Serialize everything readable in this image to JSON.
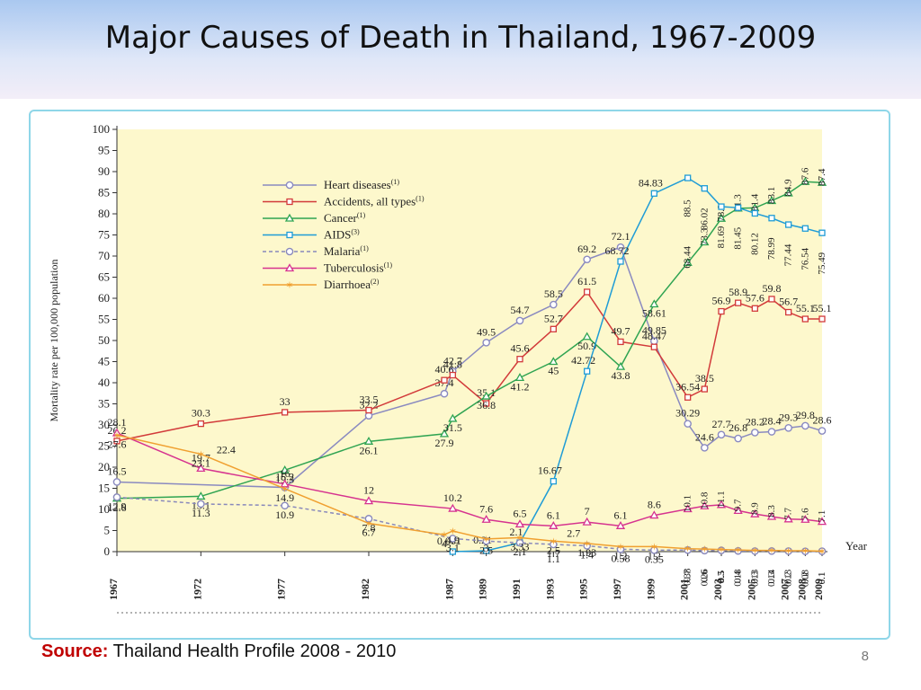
{
  "slide": {
    "title": "Major Causes of Death in Thailand, 1967-2009",
    "source_label": "Source:",
    "source_text": "Thailand Health Profile 2008 - 2010",
    "page_number": "8"
  },
  "chart_data": {
    "type": "line",
    "title": "",
    "ylabel": "Mortality rate per 100,000 population",
    "xlabel": "Year",
    "ylim": [
      0,
      100
    ],
    "yticks": [
      0,
      5,
      10,
      15,
      20,
      25,
      30,
      35,
      40,
      45,
      50,
      55,
      60,
      65,
      70,
      75,
      80,
      85,
      90,
      95,
      100
    ],
    "xticks": [
      1967,
      1972,
      1977,
      1982,
      1987,
      1989,
      1991,
      1993,
      1995,
      1997,
      1999,
      2001,
      2003,
      2005,
      2007,
      2008,
      2009
    ],
    "legend_position": "top-left",
    "colors": {
      "plot_background": "#fdf8cc",
      "heart": "#8a8ac0",
      "accidents": "#d23a3a",
      "cancer": "#2fa452",
      "aids": "#1f9cd6",
      "malaria": "#8888bb",
      "tb": "#d6338f",
      "diarrhoea": "#f0a030"
    },
    "series": [
      {
        "key": "heart",
        "name": "Heart diseases",
        "sup": "(1)",
        "marker": "circle",
        "dash": false,
        "x": [
          1967,
          1977,
          1982,
          1986.5,
          1987,
          1989,
          1991,
          1993,
          1995,
          1997,
          1999,
          2001,
          2002,
          2003,
          2004,
          2005,
          2006,
          2007,
          2008,
          2009
        ],
        "values": [
          16.5,
          15.2,
          32.2,
          37.4,
          42.7,
          49.5,
          54.7,
          58.5,
          69.2,
          72.1,
          49.85,
          30.29,
          24.6,
          27.7,
          26.8,
          28.2,
          28.4,
          29.3,
          29.8,
          28.6
        ],
        "labels": [
          "16.5",
          "15.2",
          "32.2",
          "37.4",
          "42.7",
          "49.5",
          "54.7",
          "58.5",
          "69.2",
          "72.1",
          "49.85",
          "30.29",
          "24.6",
          "27.7",
          "26.8",
          "28.2",
          "28.4",
          "29.3",
          "29.8",
          "28.6"
        ]
      },
      {
        "key": "accidents",
        "name": "Accidents, all types",
        "sup": "(1)",
        "marker": "square",
        "dash": false,
        "x": [
          1967,
          1972,
          1977,
          1982,
          1986.5,
          1987,
          1989,
          1991,
          1993,
          1995,
          1997,
          1999,
          2001,
          2002,
          2003,
          2004,
          2005,
          2006,
          2007,
          2008,
          2009
        ],
        "values": [
          26.2,
          30.3,
          33,
          33.5,
          40.6,
          41.8,
          35.1,
          45.6,
          52.7,
          61.5,
          49.7,
          48.47,
          36.54,
          38.5,
          56.9,
          58.9,
          57.6,
          59.8,
          56.7,
          55.1,
          55.1
        ],
        "labels": [
          "26.2",
          "30.3",
          "33",
          "33.5",
          "40.6",
          "41.8",
          "35.1",
          "45.6",
          "52.7",
          "61.5",
          "49.7",
          "48.47",
          "36.54",
          "38.5",
          "56.9",
          "58.9",
          "57.6",
          "59.8",
          "56.7",
          "55.1",
          "55.1"
        ]
      },
      {
        "key": "cancer",
        "name": "Cancer",
        "sup": "(1)",
        "marker": "triangle",
        "dash": false,
        "x": [
          1967,
          1972,
          1977,
          1982,
          1986.5,
          1987,
          1989,
          1991,
          1993,
          1995,
          1997,
          1999,
          2001,
          2002,
          2003,
          2004,
          2005,
          2006,
          2007,
          2008,
          2009
        ],
        "values": [
          12.6,
          13.1,
          19.3,
          26.1,
          27.9,
          31.5,
          36.8,
          41.2,
          45,
          50.9,
          43.8,
          58.61,
          68.44,
          73.3,
          78.9,
          81.3,
          81.4,
          83.1,
          84.9,
          87.6,
          87.4
        ],
        "labels": [
          "12.6",
          "13.1",
          "19.3",
          "26.1",
          "27.9",
          "31.5",
          "36.8",
          "41.2",
          "45",
          "50.9",
          "43.8",
          "58.61",
          "68.44",
          "73.3",
          "78.9",
          "81.3",
          "81.4",
          "83.1",
          "84.9",
          "87.6",
          "87.4"
        ]
      },
      {
        "key": "aids",
        "name": "AIDS",
        "sup": "(3)",
        "marker": "square",
        "dash": false,
        "x": [
          1987,
          1989,
          1991,
          1993,
          1995,
          1997,
          1999,
          2001,
          2002,
          2003,
          2004,
          2005,
          2006,
          2007,
          2008,
          2009
        ],
        "values": [
          0.001,
          0.21,
          2.1,
          16.67,
          42.72,
          68.72,
          84.83,
          88.5,
          86.02,
          81.69,
          81.45,
          80.12,
          78.99,
          77.44,
          76.54,
          75.49
        ],
        "labels": [
          "0.001",
          "0.21",
          "2.1",
          "16.67",
          "42.72",
          "68.72",
          "84.83",
          "88.5",
          "86.02",
          "81.69",
          "81.45",
          "80.12",
          "78.99",
          "77.44",
          "76.54",
          "75.49"
        ]
      },
      {
        "key": "malaria",
        "name": "Malaria",
        "sup": "(1)",
        "marker": "circle",
        "dash": true,
        "x": [
          1967,
          1972,
          1977,
          1982,
          1987,
          1989,
          1991,
          1993,
          1995,
          1997,
          1999,
          2001,
          2002,
          2003,
          2004,
          2005,
          2006,
          2007,
          2008,
          2009
        ],
        "values": [
          12.9,
          11.3,
          10.9,
          7.8,
          3.1,
          2.5,
          2.1,
          1.7,
          1.4,
          0.58,
          0.35,
          0.38,
          0.26,
          0.3,
          0.18,
          0.13,
          0.14,
          0.13,
          0.08,
          0.1
        ],
        "labels": [
          "12.9",
          "11.3",
          "10.9",
          "7.8",
          "3.1",
          "2.5",
          "2.1",
          "1.7",
          "1.4",
          "0.58",
          "0.35",
          "0.38",
          "0.26",
          "0.3",
          "0.18",
          "0.13",
          "0.14",
          "0.13",
          "0.08",
          "0.1"
        ]
      },
      {
        "key": "tb",
        "name": "Tuberculosis",
        "sup": "(1)",
        "marker": "triangle",
        "dash": false,
        "x": [
          1967,
          1972,
          1977,
          1982,
          1987,
          1989,
          1991,
          1993,
          1995,
          1997,
          1999,
          2001,
          2002,
          2003,
          2004,
          2005,
          2006,
          2007,
          2008,
          2009
        ],
        "values": [
          28.1,
          19.7,
          16,
          12,
          10.2,
          7.6,
          6.5,
          6.1,
          7,
          6.1,
          8.6,
          10.1,
          10.8,
          11.1,
          9.7,
          8.9,
          8.3,
          7.7,
          7.6,
          7.1
        ],
        "labels": [
          "28.1",
          "19.7",
          "16",
          "12",
          "10.2",
          "7.6",
          "6.5",
          "6.1",
          "7",
          "6.1",
          "8.6",
          "10.1",
          "10.8",
          "11.1",
          "9.7",
          "8.9",
          "8.3",
          "7.7",
          "7.6",
          "7.1"
        ]
      },
      {
        "key": "diarrhoea",
        "name": "Diarrhoea",
        "sup": "(2)",
        "marker": "star",
        "dash": false,
        "x": [
          1967,
          1972,
          1977,
          1982,
          1986.5,
          1987,
          1989,
          1991,
          1993,
          1995,
          1997,
          1999,
          2001,
          2002,
          2003,
          2004,
          2005,
          2006,
          2007,
          2008,
          2009
        ],
        "values": [
          27.6,
          23.1,
          14.9,
          6.7,
          4,
          4.9,
          3,
          3.33,
          2.5,
          1.93,
          1.2,
          1.2,
          0.7,
          0.6,
          0.5,
          0.4,
          0.3,
          0.3,
          0.2,
          0.2,
          0.1
        ],
        "labels": [
          "27.6",
          "23.1",
          "14.9",
          "6.7",
          "4",
          "4.9",
          "3",
          "3.33",
          "2.5",
          "1.93",
          "1.2",
          "1.2",
          "0.7",
          "0.6",
          "0.5",
          "0.4",
          "0.3",
          "0.3",
          "0.2",
          "0.2",
          "0.1"
        ]
      }
    ],
    "extra_labels": [
      "22.4",
      "2.7",
      "1.1"
    ]
  }
}
